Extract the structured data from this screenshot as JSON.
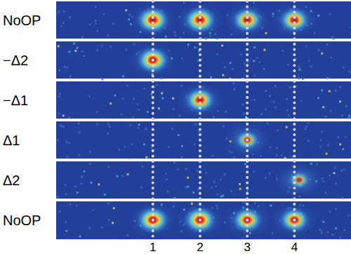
{
  "chart_data": {
    "type": "image_panels",
    "xlim": [
      -1.05,
      5.2
    ],
    "xticks": [
      1,
      2,
      3,
      4
    ],
    "grid": true,
    "series": [
      {
        "name": "NoOP",
        "x": [
          1,
          2,
          3,
          4
        ],
        "values": [
          1,
          1,
          0.9,
          0.9
        ]
      },
      {
        "name": "−Δ2",
        "x": [
          1
        ],
        "values": [
          1
        ]
      },
      {
        "name": "−Δ1",
        "x": [
          2
        ],
        "values": [
          0.9
        ]
      },
      {
        "name": "Δ1",
        "x": [
          3
        ],
        "values": [
          0.6
        ]
      },
      {
        "name": "Δ2",
        "x": [
          4.1
        ],
        "values": [
          0.5
        ]
      },
      {
        "name": "NoOP",
        "x": [
          1,
          2,
          3,
          4
        ],
        "values": [
          1,
          1,
          0.9,
          0.9
        ]
      }
    ]
  }
}
